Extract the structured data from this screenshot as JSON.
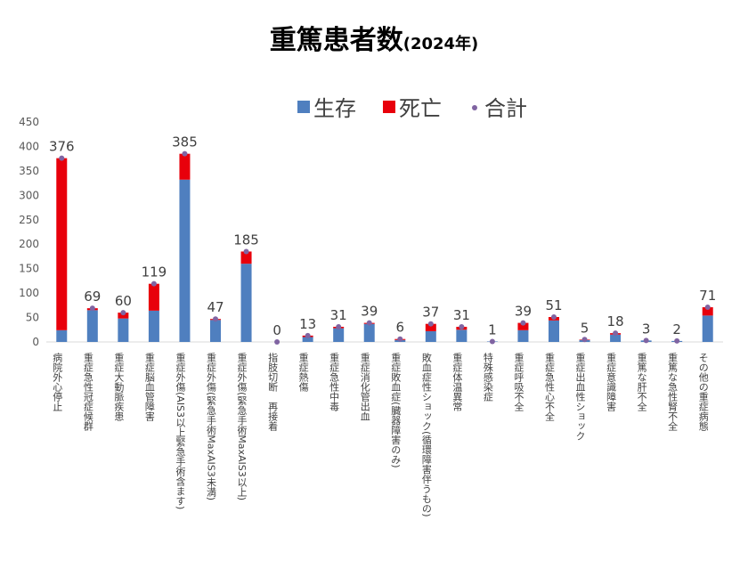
{
  "chart_data": {
    "type": "bar",
    "stacked": true,
    "title": "重篤患者数",
    "subtitle": "(2024年)",
    "ylim": [
      0,
      450
    ],
    "yticks": [
      0,
      50,
      100,
      150,
      200,
      250,
      300,
      350,
      400,
      450
    ],
    "grid": false,
    "legend_position": "top",
    "categories": [
      "病院外心停止",
      "重症急性冠症候群",
      "重症大動脈疾患",
      "重症脳血管障害",
      "重症外傷(AIS3以上緊急手術含ます)",
      "重症外傷(緊急手術MaxAIS3未満)",
      "重症外傷(緊急手術MaxAIS3以上)",
      "指肢切断　再接着",
      "重症熱傷",
      "重症急性中毒",
      "重症消化管出血",
      "重症敗血症(臓器障害のみ)",
      "敗血症性ショック(循環障害伴うもの)",
      "重症体温異常",
      "特殊感染症",
      "重症呼吸不全",
      "重症急性心不全",
      "重症出血性ショック",
      "重症意識障害",
      "重篤な肝不全",
      "重篤な急性腎不全",
      "その他の重症病態"
    ],
    "series": [
      {
        "name": "生存",
        "color": "#4F7FBF",
        "values": [
          24,
          65,
          48,
          64,
          332,
          45,
          160,
          0,
          10,
          28,
          37,
          4,
          22,
          25,
          1,
          24,
          44,
          4,
          15,
          3,
          2,
          54
        ]
      },
      {
        "name": "死亡",
        "color": "#E8000B",
        "values": [
          352,
          4,
          12,
          55,
          53,
          2,
          25,
          0,
          3,
          3,
          2,
          2,
          15,
          6,
          0,
          15,
          7,
          1,
          3,
          0,
          0,
          17
        ]
      }
    ],
    "totals_series": {
      "name": "合計",
      "color": "#8064A2",
      "values": [
        376,
        69,
        60,
        119,
        385,
        47,
        185,
        0,
        13,
        31,
        39,
        6,
        37,
        31,
        1,
        39,
        51,
        5,
        18,
        3,
        2,
        71
      ]
    }
  }
}
